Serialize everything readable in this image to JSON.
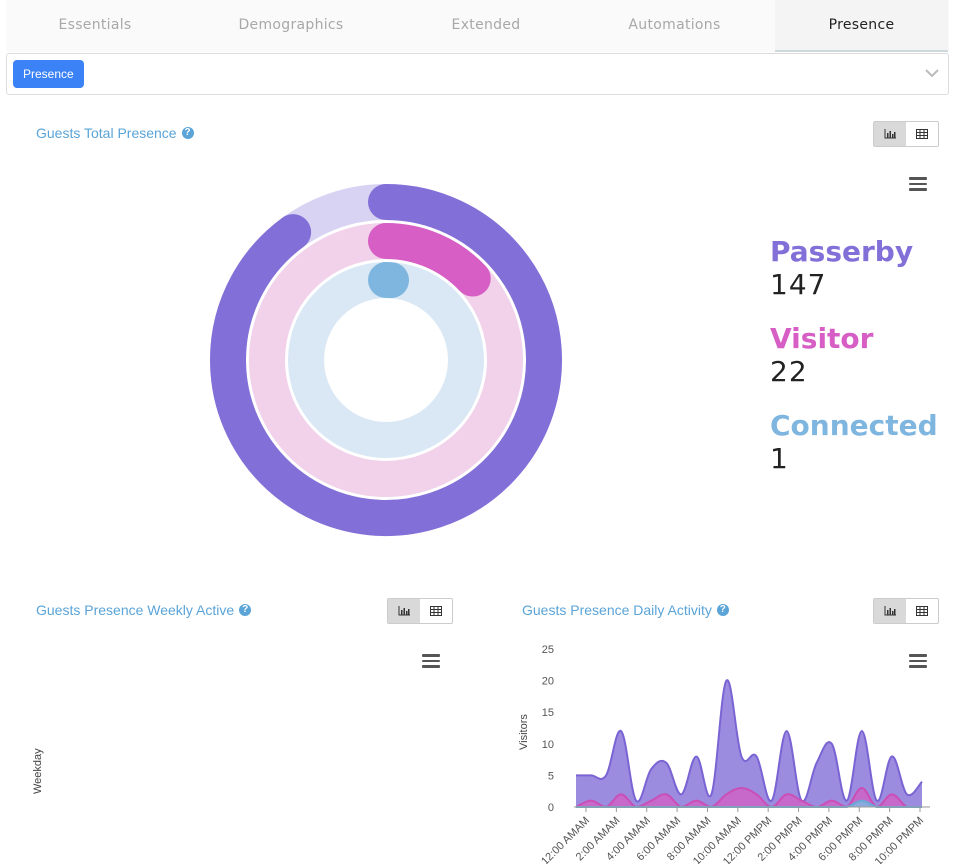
{
  "tabs": [
    {
      "label": "Essentials"
    },
    {
      "label": "Demographics"
    },
    {
      "label": "Extended"
    },
    {
      "label": "Automations"
    },
    {
      "label": "Presence"
    }
  ],
  "filter": {
    "selected": "Presence"
  },
  "panels": {
    "total": {
      "title": "Guests Total Presence"
    },
    "weekly": {
      "title": "Guests Presence Weekly Active",
      "ylabel": "Weekday"
    },
    "daily": {
      "title": "Guests Presence Daily Activity"
    }
  },
  "colors": {
    "passerby": "#836fd8",
    "visitor": "#d65ec4",
    "connected": "#7fb6e0",
    "link": "#5aa4d8"
  },
  "icons": [
    "help-icon",
    "bar-chart-icon",
    "table-icon",
    "menu-icon",
    "chevron-down-icon"
  ],
  "legend": [
    {
      "name": "Passerby",
      "value": "147"
    },
    {
      "name": "Visitor",
      "value": "22"
    },
    {
      "name": "Connected",
      "value": "1"
    }
  ],
  "chart_data": [
    {
      "type": "radial-bar",
      "title": "",
      "series": [
        {
          "name": "Passerby",
          "value": 147,
          "fill_fraction": 0.9
        },
        {
          "name": "Visitor",
          "value": 22,
          "fill_fraction": 0.13
        },
        {
          "name": "Connected",
          "value": 1,
          "fill_fraction": 0.01
        }
      ]
    },
    {
      "type": "area",
      "title": "",
      "ylabel": "Visitors",
      "ylim": [
        0,
        25
      ],
      "yticks": [
        "0",
        "5",
        "10",
        "15",
        "20",
        "25"
      ],
      "xticks": [
        "12:00 AMAM",
        "2:00 AMAM",
        "4:00 AMAM",
        "6:00 AMAM",
        "8:00 AMAM",
        "10:00 AMAM",
        "12:00 PMPM",
        "2:00 PMPM",
        "4:00 PMPM",
        "6:00 PMPM",
        "8:00 PMPM",
        "10:00 PMPM"
      ],
      "series": [
        {
          "name": "Passerby",
          "values": [
            5,
            5,
            5,
            12,
            1,
            6,
            7,
            2,
            8,
            2,
            20,
            8,
            8,
            1,
            12,
            1,
            7,
            10,
            1,
            12,
            1,
            8,
            2,
            4
          ]
        },
        {
          "name": "Visitor",
          "values": [
            0,
            1,
            0,
            2,
            0,
            1,
            2,
            0,
            1,
            0,
            2,
            3,
            2,
            0,
            2,
            1,
            0,
            1,
            0,
            3,
            0,
            2,
            0,
            0
          ]
        },
        {
          "name": "Connected",
          "values": [
            0,
            0,
            0,
            0,
            0,
            0,
            0,
            0,
            0,
            0,
            0,
            0,
            0,
            0,
            0,
            0,
            0,
            0,
            0,
            1,
            0,
            0,
            0,
            0
          ]
        }
      ]
    }
  ]
}
